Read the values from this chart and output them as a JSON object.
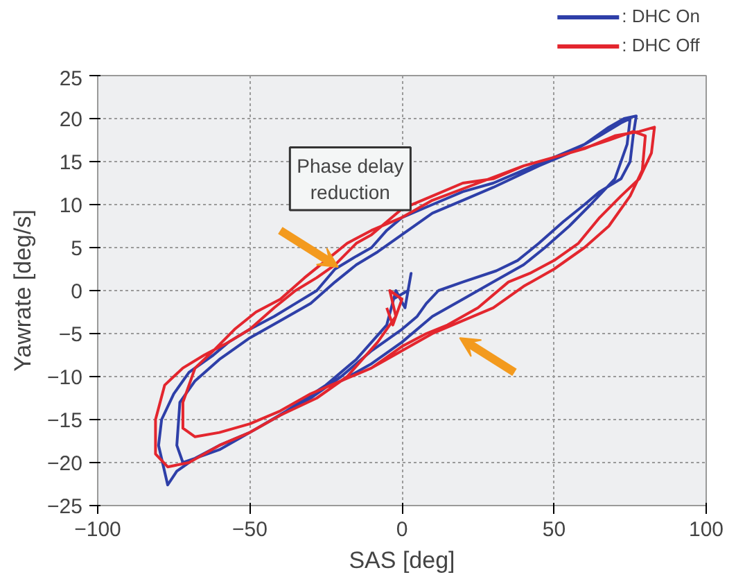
{
  "chart_data": {
    "type": "line",
    "xlabel": "SAS [deg]",
    "ylabel": "Yawrate [deg/s]",
    "xlim": [
      -100,
      100
    ],
    "xticks": [
      -100,
      -50,
      0,
      50,
      100
    ],
    "ylim": [
      -25,
      25
    ],
    "yticks": [
      -25,
      -20,
      -15,
      -10,
      -5,
      0,
      5,
      10,
      15,
      20,
      25
    ],
    "grid": true,
    "legend": "top right",
    "line_style": "solid",
    "annotations": [
      "Phase delay\nreduction"
    ],
    "series": [
      {
        "name": ": DHC On",
        "color": "#2e3fa8",
        "x": [
          -3,
          2,
          3,
          1,
          -2,
          -5,
          -15,
          -25,
          -38,
          -50,
          -60,
          -68,
          -74,
          -77,
          -80,
          -79,
          -75,
          -70,
          -62,
          -57,
          -50,
          -42,
          -35,
          -28,
          -22,
          -15,
          -10,
          -5,
          0,
          10,
          20,
          30,
          40,
          50,
          60,
          68,
          73,
          77,
          76,
          75,
          72,
          65,
          60,
          53,
          45,
          38,
          31,
          20,
          12,
          8,
          5,
          0,
          -10,
          -20,
          -30,
          -40,
          -50,
          -60,
          -68,
          -72,
          -74,
          -73,
          -68,
          -60,
          -50,
          -40,
          -30,
          -22,
          -15,
          -8,
          0,
          10,
          20,
          30,
          45,
          55,
          65,
          72,
          75,
          74,
          70,
          62,
          55,
          47,
          40,
          30,
          20,
          10,
          0,
          -10,
          -20
        ],
        "values": [
          -1,
          0,
          2,
          -2,
          0,
          -4,
          -8,
          -11,
          -14,
          -16.5,
          -18.5,
          -19.5,
          -21,
          -22.6,
          -18,
          -15,
          -12,
          -9.5,
          -7.5,
          -6,
          -4.5,
          -3,
          -1.5,
          0,
          2.5,
          4,
          5,
          7,
          8.5,
          10,
          11.5,
          12.5,
          14,
          15.5,
          17,
          19,
          20,
          20.3,
          18,
          15,
          13,
          11.5,
          10,
          8,
          5.5,
          3.5,
          2.3,
          1,
          0,
          -1.5,
          -3,
          -4.5,
          -7,
          -10,
          -12.5,
          -14.5,
          -16.5,
          -18,
          -19.5,
          -20,
          -18,
          -13,
          -10.5,
          -8,
          -5.5,
          -3.5,
          -1.5,
          1,
          3,
          4.5,
          6.5,
          9,
          10.5,
          12,
          14.5,
          16,
          18,
          19.5,
          20,
          17,
          13,
          10,
          7.5,
          5,
          3,
          1,
          -1,
          -3,
          -6,
          -8.5,
          -10.5
        ]
      },
      {
        "name": ": DHC Off",
        "color": "#e3262e",
        "x": [
          -5,
          -3,
          0,
          -4,
          -2,
          -8,
          -18,
          -28,
          -40,
          -50,
          -60,
          -70,
          -77,
          -81,
          -81,
          -78,
          -72,
          -65,
          -57,
          -50,
          -42,
          -35,
          -28,
          -22,
          -15,
          -10,
          -5,
          0,
          10,
          20,
          30,
          40,
          50,
          60,
          70,
          78,
          83,
          82,
          78,
          72,
          65,
          58,
          50,
          42,
          35,
          25,
          15,
          8,
          0,
          -10,
          -20,
          -30,
          -40,
          -50,
          -60,
          -68,
          -72,
          -72,
          -68,
          -62,
          -55,
          -48,
          -40,
          -32,
          -25,
          -18,
          -10,
          0,
          10,
          25,
          40,
          55,
          68,
          76,
          80,
          79,
          75,
          68,
          60,
          50,
          40,
          30,
          20,
          10,
          0,
          -10
        ],
        "values": [
          -2,
          -4,
          -1,
          0,
          -3,
          -6,
          -10,
          -12.5,
          -14.5,
          -16.5,
          -18,
          -20,
          -20.5,
          -19,
          -15,
          -11,
          -9,
          -7.5,
          -6,
          -4.5,
          -2,
          0,
          1.5,
          3,
          5.5,
          6.5,
          8,
          9.5,
          11,
          12.5,
          13,
          14.5,
          15.5,
          16.5,
          18,
          18.5,
          19,
          16,
          13,
          11,
          8.5,
          5.5,
          3.5,
          2,
          1,
          -2,
          -4,
          -5,
          -6.5,
          -9,
          -10.5,
          -12,
          -14,
          -15.5,
          -16.5,
          -17,
          -16,
          -13,
          -9,
          -7,
          -4.5,
          -2.5,
          -1,
          1.5,
          3.5,
          5.5,
          7,
          8.5,
          10.5,
          12.5,
          14.5,
          16,
          17.5,
          18.5,
          18,
          14,
          11,
          7.5,
          5,
          2.5,
          0.5,
          -2,
          -3.5,
          -5,
          -7,
          -9
        ]
      }
    ]
  }
}
